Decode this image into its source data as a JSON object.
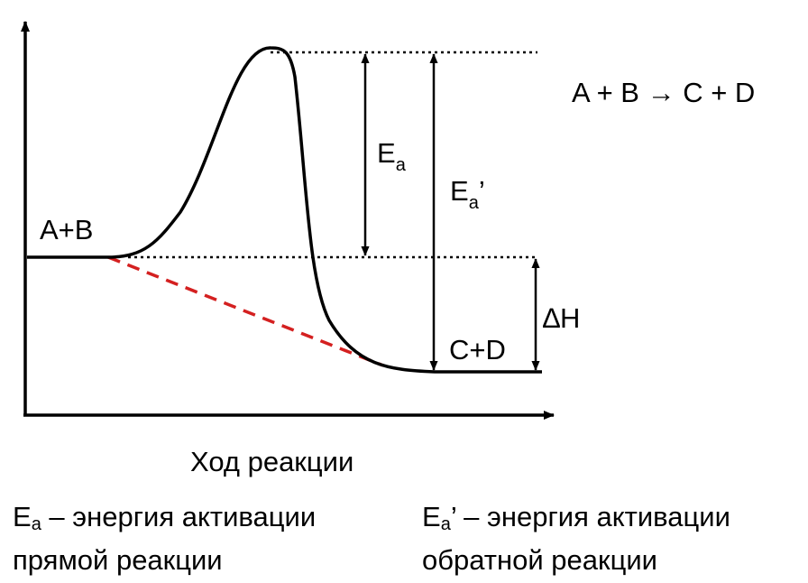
{
  "diagram": {
    "equation": "A + B → C + D",
    "reactants_label": "A+B",
    "products_label": "C+D",
    "ea_symbol": "E",
    "ea_sub": "a",
    "ea_prime_mark": "’",
    "delta_h_label": "∆H",
    "x_axis_label": "Ход реакции",
    "colors": {
      "curve": "#000000",
      "catalyzed_path": "#d42020",
      "guides": "#000000"
    }
  },
  "legend": {
    "left": {
      "symbol": "E",
      "sub": "a",
      "line1": " – энергия активации",
      "line2": "прямой реакции"
    },
    "right": {
      "symbol": "E",
      "sub": "a",
      "prime": "’",
      "line1": " – энергия активации",
      "line2": "обратной реакции"
    }
  }
}
